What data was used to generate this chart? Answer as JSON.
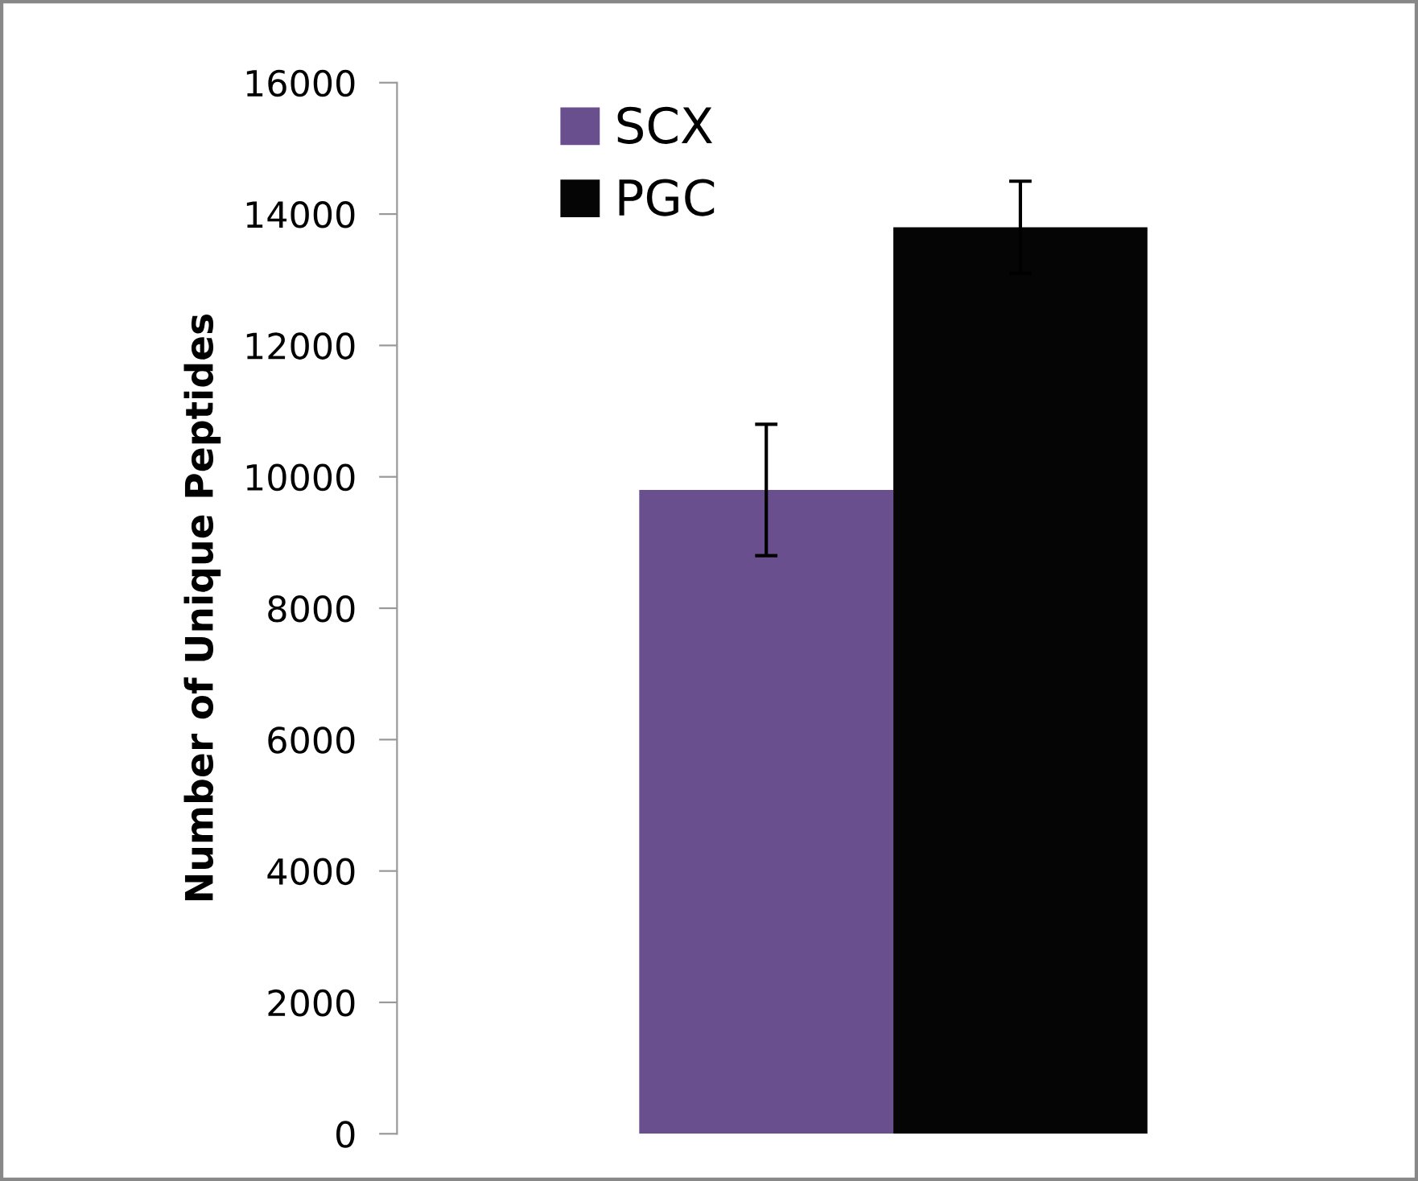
{
  "chart_data": {
    "type": "bar",
    "ylabel": "Number of Unique Peptides",
    "categories": [
      null
    ],
    "series": [
      {
        "name": "SCX",
        "color": "#6a4f8f",
        "values": [
          9800
        ],
        "errors": [
          1000
        ]
      },
      {
        "name": "PGC",
        "color": "#050505",
        "values": [
          13800
        ],
        "errors": [
          700
        ]
      }
    ],
    "ylim": [
      0,
      16000
    ],
    "yticks": [
      0,
      2000,
      4000,
      6000,
      8000,
      10000,
      12000,
      14000,
      16000
    ],
    "grid": false,
    "legend": "top left"
  }
}
